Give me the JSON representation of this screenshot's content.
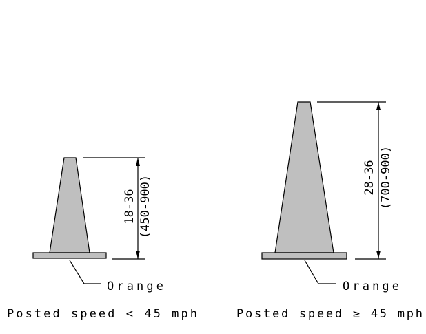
{
  "cones": [
    {
      "height": "18-36",
      "height_mm": "(450-900)",
      "color": "Orange",
      "caption": "Posted speed < 45 mph"
    },
    {
      "height": "28-36",
      "height_mm": "(700-900)",
      "color": "Orange",
      "caption": "Posted speed ≥ 45 mph"
    }
  ]
}
